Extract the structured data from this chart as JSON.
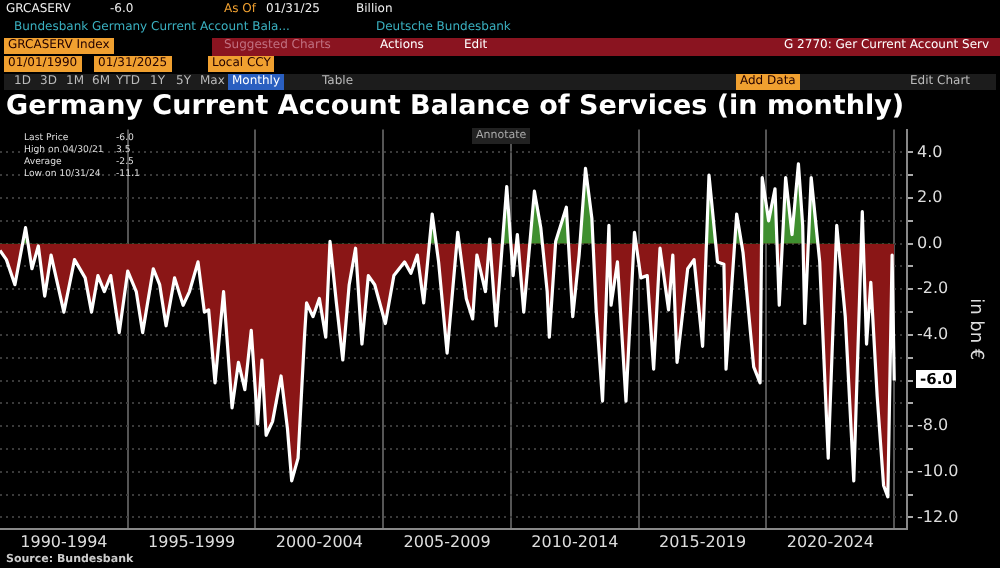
{
  "chart_data": {
    "type": "area",
    "title": "Germany Current Account Balance of Services (in monthly)",
    "ylabel": "in bn €",
    "marker": "none",
    "grid": true,
    "annotations": [
      "GRCASERV",
      "-6.0",
      "As Of",
      "01/31/25",
      "Billion",
      "Bundesbank Germany Current Account Bala...",
      "Deutsche Bundesbank",
      "GRCASERV Index",
      "Suggested Charts",
      "Actions",
      "Edit",
      "G 2770: Ger Current Account Serv",
      "01/01/1990",
      "01/31/2025",
      "Local CCY",
      "1D",
      "3D",
      "1M",
      "6M",
      "YTD",
      "1Y",
      "5Y",
      "Max",
      "Monthly",
      "Table",
      "Add Data",
      "Edit Chart",
      "Annotate",
      "Last Price",
      "-6.0",
      "High on 04/30/21",
      "3.5",
      "Average",
      "-2.5",
      "Low on 10/31/24",
      "-11.1",
      "Source: Bundesbank",
      "-6.0"
    ],
    "xlim": [
      "1990-01",
      "2025-07"
    ],
    "xticks": [
      {
        "value": "1992-07",
        "label": "1990-1994"
      },
      {
        "value": "1997-07",
        "label": "1995-1999"
      },
      {
        "value": "2002-07",
        "label": "2000-2004"
      },
      {
        "value": "2007-07",
        "label": "2005-2009"
      },
      {
        "value": "2012-07",
        "label": "2010-2014"
      },
      {
        "value": "2017-07",
        "label": "2015-2019"
      },
      {
        "value": "2022-07",
        "label": "2020-2024"
      },
      {
        "value": "1995-01",
        "label": null
      },
      {
        "value": "2000-01",
        "label": null
      },
      {
        "value": "2005-01",
        "label": null
      },
      {
        "value": "2010-01",
        "label": null
      },
      {
        "value": "2015-01",
        "label": null
      },
      {
        "value": "2020-01",
        "label": null
      },
      {
        "value": "2025-01",
        "label": null
      }
    ],
    "ylim": [
      -12.5,
      5
    ],
    "yticks": [
      {
        "value": 4,
        "label": "4.0"
      },
      {
        "value": 3,
        "label": null
      },
      {
        "value": 2,
        "label": "2.0"
      },
      {
        "value": 1,
        "label": null
      },
      {
        "value": 0,
        "label": "0.0"
      },
      {
        "value": -1,
        "label": null
      },
      {
        "value": -2,
        "label": "-2.0"
      },
      {
        "value": -3,
        "label": null
      },
      {
        "value": -4,
        "label": "-4.0"
      },
      {
        "value": -5,
        "label": null
      },
      {
        "value": -6,
        "label": null
      },
      {
        "value": -7,
        "label": null
      },
      {
        "value": -8,
        "label": "-8.0"
      },
      {
        "value": -9,
        "label": null
      },
      {
        "value": -10,
        "label": "-10.0"
      },
      {
        "value": -11,
        "label": null
      },
      {
        "value": -12,
        "label": "-12.0"
      }
    ],
    "x": [
      "1990-01",
      "1990-04",
      "1990-08",
      "1991-01",
      "1991-04",
      "1991-07",
      "1991-10",
      "1992-01",
      "1992-07",
      "1992-12",
      "1993-05",
      "1993-08",
      "1993-11",
      "1994-02",
      "1994-05",
      "1994-09",
      "1995-01",
      "1995-05",
      "1995-08",
      "1996-01",
      "1996-04",
      "1996-07",
      "1996-11",
      "1997-03",
      "1997-06",
      "1997-10",
      "1998-01",
      "1998-03",
      "1998-06",
      "1998-10",
      "1999-02",
      "1999-05",
      "1999-08",
      "1999-11",
      "2000-02",
      "2000-04",
      "2000-06",
      "2000-09",
      "2001-01",
      "2001-04",
      "2001-06",
      "2001-09",
      "2001-12",
      "2002-01",
      "2002-04",
      "2002-07",
      "2002-10",
      "2002-12",
      "2003-03",
      "2003-06",
      "2003-09",
      "2003-12",
      "2004-03",
      "2004-06",
      "2004-09",
      "2005-02",
      "2005-06",
      "2005-11",
      "2006-02",
      "2006-05",
      "2006-08",
      "2006-12",
      "2007-03",
      "2007-07",
      "2007-12",
      "2008-04",
      "2008-07",
      "2008-09",
      "2009-01",
      "2009-03",
      "2009-06",
      "2009-11",
      "2010-02",
      "2010-04",
      "2010-07",
      "2010-12",
      "2011-03",
      "2011-06",
      "2011-07",
      "2011-10",
      "2012-03",
      "2012-06",
      "2012-09",
      "2012-12",
      "2013-03",
      "2013-05",
      "2013-08",
      "2013-11",
      "2013-12",
      "2014-03",
      "2014-07",
      "2014-11",
      "2015-02",
      "2015-05",
      "2015-08",
      "2015-11",
      "2016-03",
      "2016-05",
      "2016-07",
      "2016-12",
      "2017-03",
      "2017-07",
      "2017-10",
      "2018-02",
      "2018-05",
      "2018-06",
      "2018-11",
      "2019-02",
      "2019-07",
      "2019-10",
      "2019-11",
      "2020-02",
      "2020-05",
      "2020-07",
      "2020-10",
      "2021-01",
      "2021-04",
      "2021-06",
      "2021-07",
      "2021-10",
      "2022-02",
      "2022-06",
      "2022-10",
      "2023-02",
      "2023-06",
      "2023-10",
      "2023-12",
      "2024-02",
      "2024-05",
      "2024-08",
      "2024-10",
      "2024-12",
      "2025-01"
    ],
    "series": [
      {
        "color": "#ffffff",
        "values": [
          -0.3,
          -0.7,
          -1.8,
          0.7,
          -1.1,
          -0.1,
          -2.3,
          -0.5,
          -3.0,
          -0.7,
          -1.5,
          -3.0,
          -1.4,
          -2.1,
          -1.4,
          -3.9,
          -1.2,
          -2.1,
          -3.9,
          -1.1,
          -1.8,
          -3.6,
          -1.5,
          -2.7,
          -2.1,
          -0.8,
          -3.0,
          -2.9,
          -6.1,
          -2.1,
          -7.2,
          -5.2,
          -6.4,
          -3.8,
          -7.9,
          -5.1,
          -8.4,
          -7.8,
          -5.8,
          -8.1,
          -10.4,
          -9.4,
          -4.1,
          -2.6,
          -3.2,
          -2.4,
          -4.1,
          0.1,
          -2.6,
          -5.1,
          -1.8,
          -0.2,
          -4.4,
          -1.4,
          -1.8,
          -3.5,
          -1.4,
          -0.8,
          -1.3,
          -0.5,
          -2.6,
          1.3,
          -0.8,
          -4.8,
          0.5,
          -2.4,
          -3.3,
          -0.5,
          -2.1,
          0.2,
          -3.6,
          2.5,
          -1.4,
          0.4,
          -3.0,
          2.3,
          0.7,
          -2.1,
          -4.1,
          0.1,
          1.6,
          -3.2,
          -0.5,
          3.3,
          1.1,
          -2.9,
          -6.9,
          0.8,
          -2.7,
          -0.8,
          -6.9,
          0.5,
          -1.5,
          -1.4,
          -5.5,
          -0.2,
          -2.9,
          -0.5,
          -5.2,
          -1.1,
          -0.7,
          -4.5,
          3.0,
          -0.8,
          -0.9,
          -5.5,
          1.3,
          -0.4,
          -5.4,
          -6.1,
          2.9,
          1.0,
          2.4,
          -2.7,
          2.9,
          0.4,
          3.5,
          0.8,
          -3.5,
          2.9,
          -0.8,
          -9.4,
          0.8,
          -3.2,
          -10.4,
          1.4,
          -4.4,
          -1.7,
          -6.7,
          -10.6,
          -11.1,
          -0.5,
          -6.0
        ]
      }
    ]
  }
}
